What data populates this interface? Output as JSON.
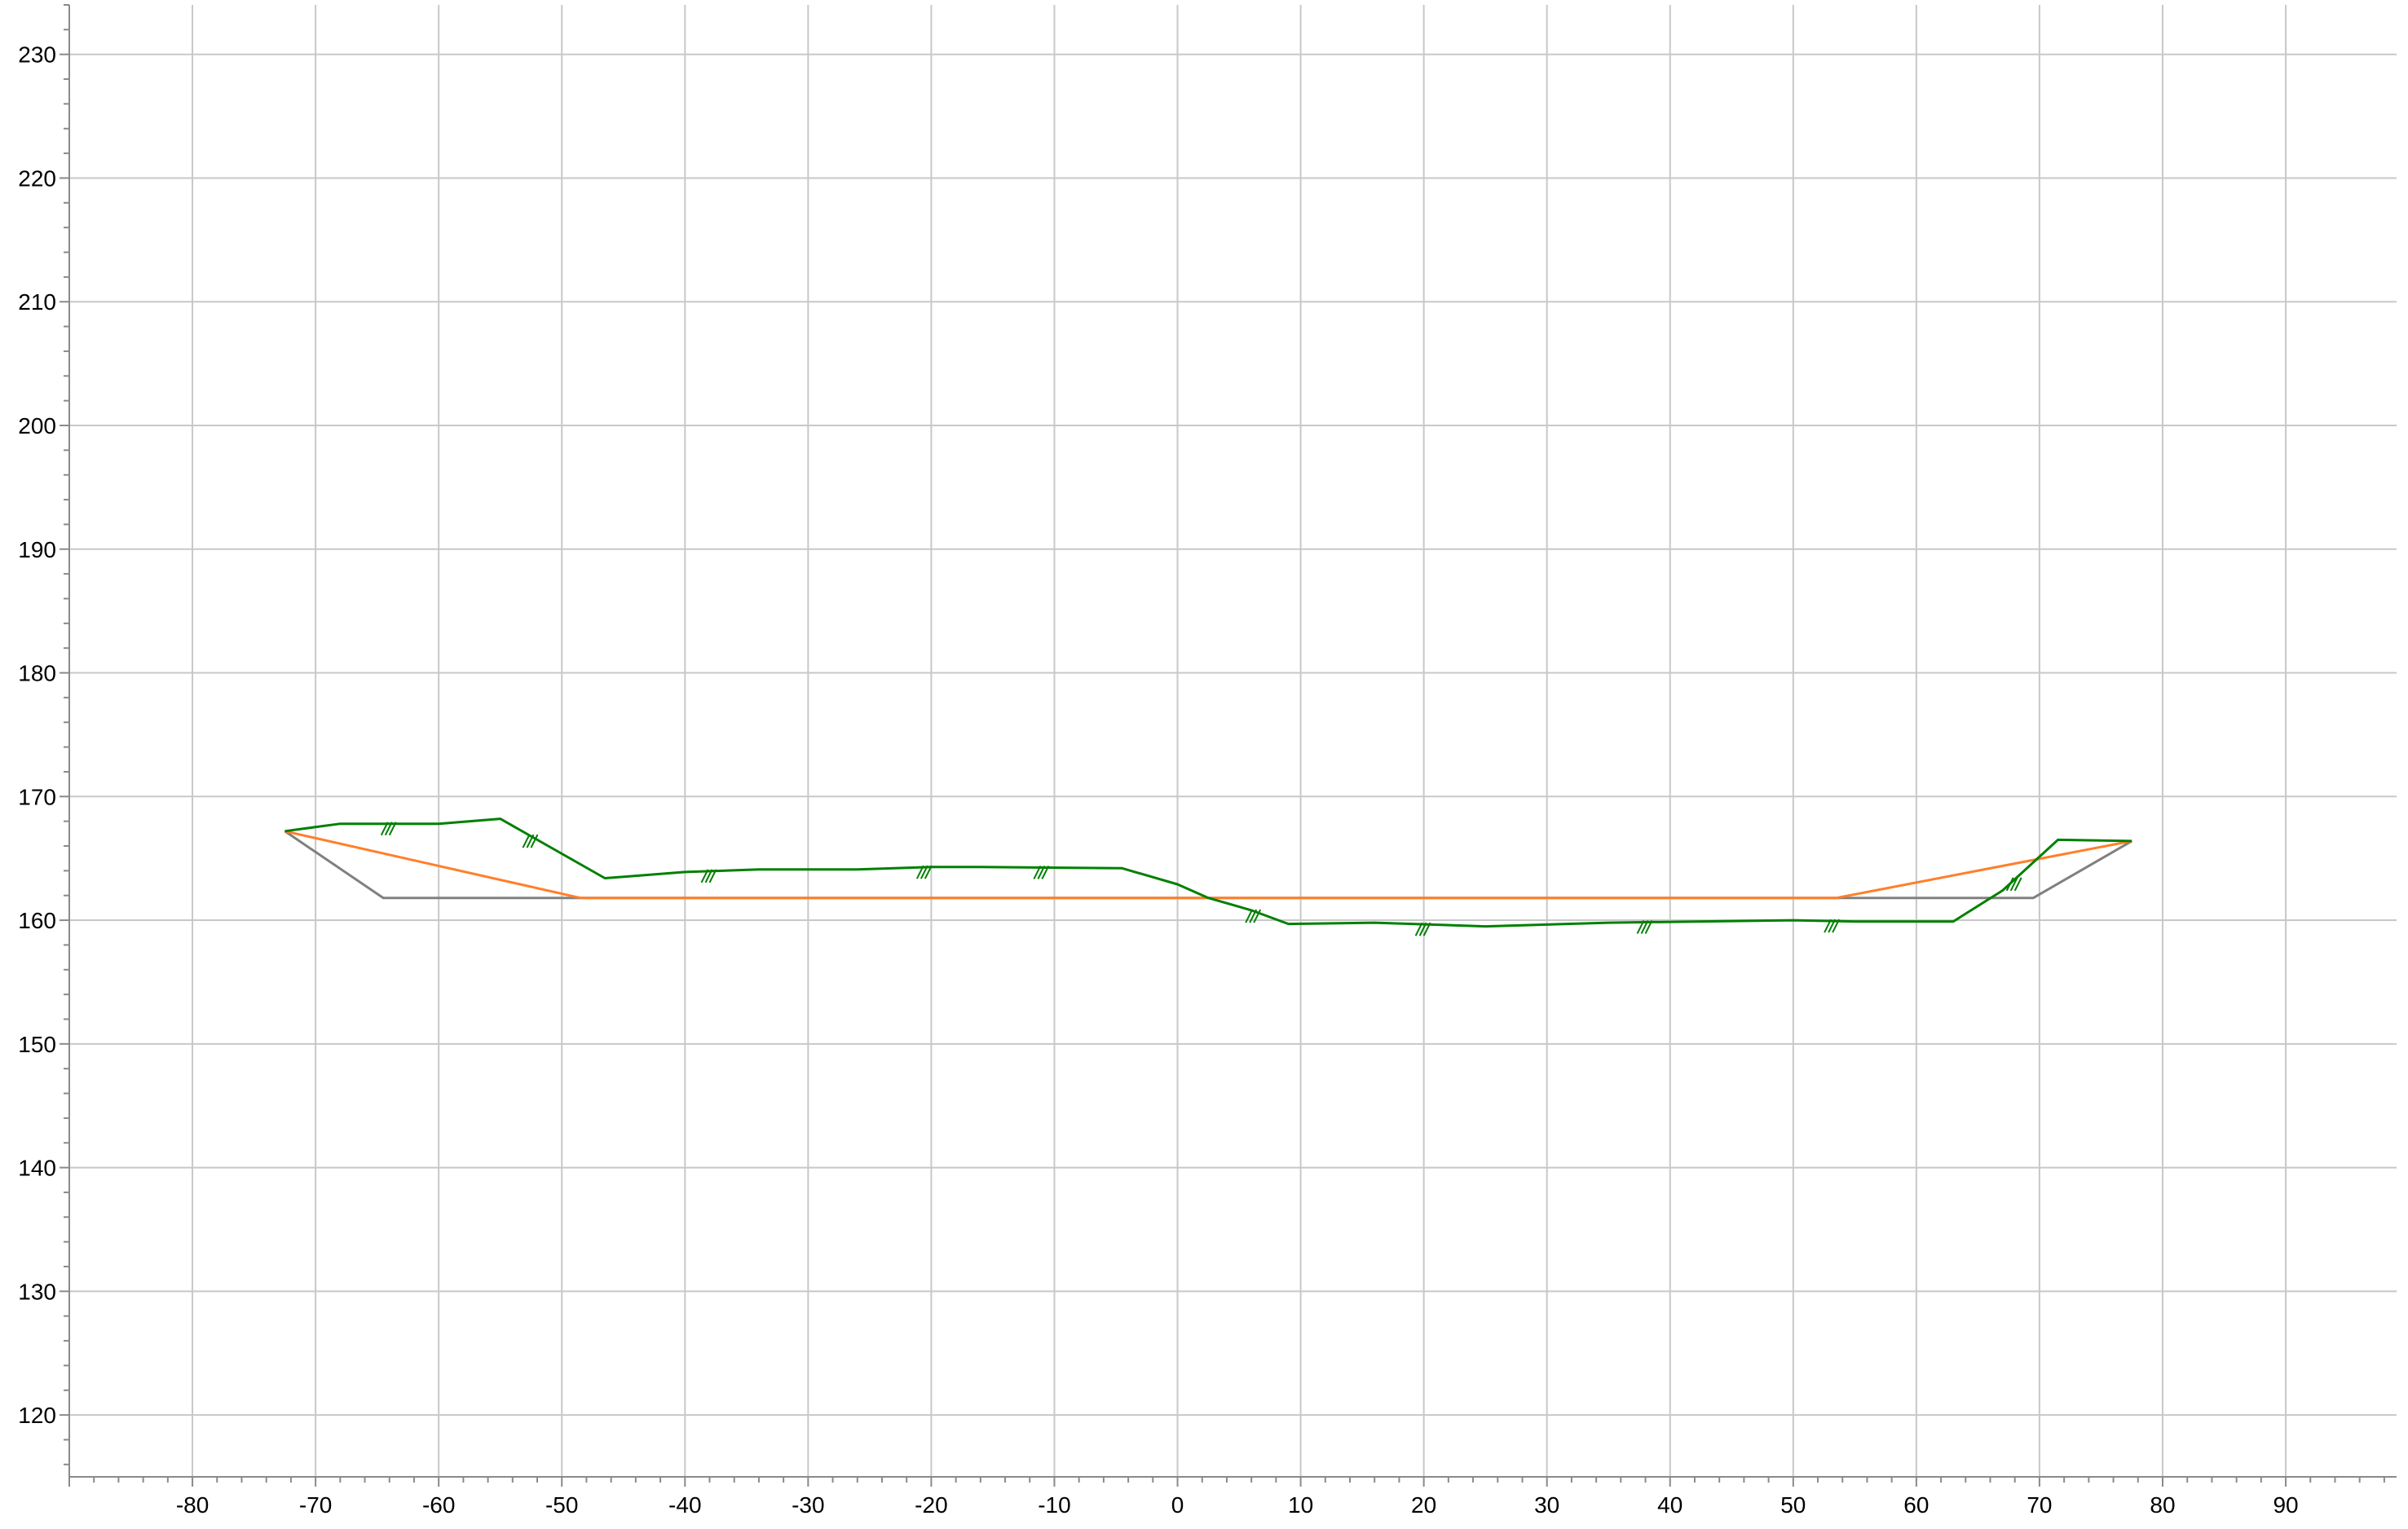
{
  "chart_data": {
    "type": "line",
    "title": "",
    "xlabel": "",
    "ylabel": "",
    "xlim": [
      -90,
      99
    ],
    "ylim": [
      115,
      234
    ],
    "x_ticks": [
      -80,
      -70,
      -60,
      -50,
      -40,
      -30,
      -20,
      -10,
      0,
      10,
      20,
      30,
      40,
      50,
      60,
      70,
      80,
      90
    ],
    "y_ticks": [
      120,
      130,
      140,
      150,
      160,
      170,
      180,
      190,
      200,
      210,
      220,
      230
    ],
    "grid": true,
    "legend": "none",
    "series": [
      {
        "color": "#808080",
        "x": [
          -72.5,
          -64.5,
          69.5,
          77.5
        ],
        "y": [
          167.2,
          161.8,
          161.8,
          166.4
        ]
      },
      {
        "color": "#ff7f2a",
        "x": [
          -72.5,
          -48.5,
          53.5,
          77.5
        ],
        "y": [
          167.2,
          161.8,
          161.8,
          166.4
        ]
      },
      {
        "color": "#008000",
        "x": [
          -72.5,
          -68,
          -60,
          -55,
          -46.5,
          -40,
          -34,
          -26,
          -20,
          -16,
          -4.5,
          0,
          2.5,
          6,
          9,
          16,
          25,
          35,
          50,
          55,
          63,
          67,
          71.5,
          77.5
        ],
        "y": [
          167.2,
          167.8,
          167.8,
          168.2,
          163.4,
          163.9,
          164.1,
          164.1,
          164.3,
          164.3,
          164.2,
          162.9,
          161.8,
          160.8,
          159.7,
          159.8,
          159.5,
          159.8,
          160.0,
          159.9,
          159.9,
          162.4,
          166.5,
          166.4
        ]
      }
    ],
    "annotation_marks": {
      "symbol": "///",
      "color": "#008000",
      "x": [
        -64,
        -52.5,
        -38,
        -20.5,
        -11,
        6.2,
        20,
        38,
        53.2,
        68
      ]
    }
  }
}
